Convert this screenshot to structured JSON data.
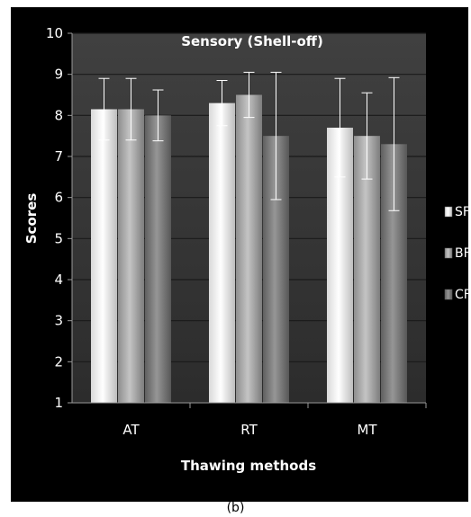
{
  "chart_data": {
    "type": "bar",
    "title": "Sensory (Shell-off)",
    "xlabel": "Thawing methods",
    "ylabel": "Scores",
    "categories": [
      "AT",
      "RT",
      "MT"
    ],
    "ylim": [
      1,
      10
    ],
    "yticks": [
      "1",
      "2",
      "3",
      "4",
      "5",
      "6",
      "7",
      "8",
      "9",
      "10"
    ],
    "grid": true,
    "legend_position": "right",
    "series": [
      {
        "name": "SF",
        "values": [
          8.15,
          8.3,
          7.7
        ],
        "errors": [
          0.75,
          0.55,
          1.2
        ],
        "color": "#f2f2f2"
      },
      {
        "name": "BF",
        "values": [
          8.15,
          8.5,
          7.5
        ],
        "errors": [
          0.75,
          0.55,
          1.05
        ],
        "color": "#b0b0b0"
      },
      {
        "name": "CF",
        "values": [
          8.0,
          7.5,
          7.3
        ],
        "errors": [
          0.62,
          1.55,
          1.62
        ],
        "color": "#808080"
      }
    ],
    "colors": {
      "background": "#000000",
      "plot_area": "#3a3a3a",
      "grid": "#1a1a1a",
      "error_bar": "#ffffff"
    }
  },
  "caption": "(b)"
}
